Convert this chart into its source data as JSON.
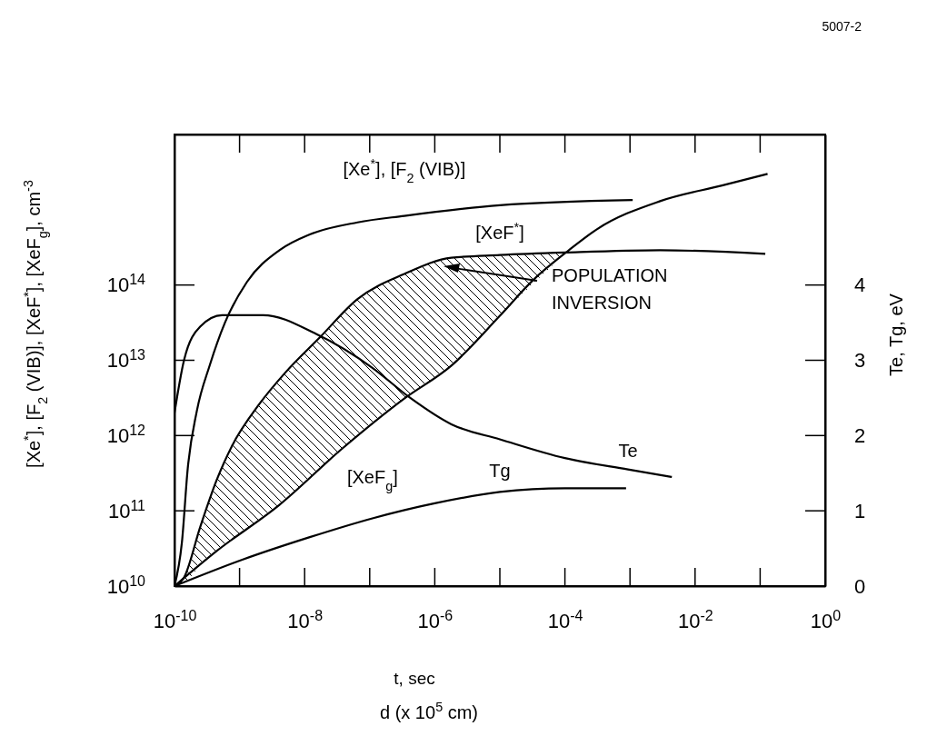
{
  "chart_data": {
    "type": "line",
    "xlabel": "t, sec",
    "ylabel": "[Xe$^{*}$], [F$_{2}$ (VIB)], [XeF$^{*}$], [XeF$_{g}$], cm$^{-3}$",
    "y2label": "Te, Tg, eV",
    "annotations": [
      "5007-2",
      "POPULATION INVERSION",
      "d (x 10$^{5}$ cm)"
    ],
    "log": "xy",
    "xlim": [
      1e-10,
      1
    ],
    "xticks": [
      {
        "value": 1e-10,
        "label": "10$^{-10}$"
      },
      {
        "value": 1e-08,
        "label": "10$^{-8}$"
      },
      {
        "value": 1e-06,
        "label": "10$^{-6}$"
      },
      {
        "value": 0.0001,
        "label": "10$^{-4}$"
      },
      {
        "value": 0.01,
        "label": "10$^{-2}$"
      },
      {
        "value": 1,
        "label": "10$^{0}$"
      }
    ],
    "ylim": [
      10000000000.0,
      1e+16
    ],
    "yticks": [
      {
        "value": 10000000000.0,
        "label": "10$^{10}$"
      },
      {
        "value": 100000000000.0,
        "label": "10$^{11}$"
      },
      {
        "value": 1000000000000.0,
        "label": "10$^{12}$"
      },
      {
        "value": 10000000000000.0,
        "label": "10$^{13}$"
      },
      {
        "value": 100000000000000.0,
        "label": "10$^{14}$"
      }
    ],
    "y2lim": [
      0,
      6
    ],
    "y2ticks": [
      0,
      1,
      2,
      3,
      4
    ],
    "series": [
      {
        "name": "[Xe$^{*}$], [F$_{2}$ (VIB)]",
        "color": "#000000",
        "x": [
          1e-10,
          1.3e-10,
          1.6e-10,
          2.2e-10,
          3.5e-10,
          6e-10,
          1.3e-09,
          4.1e-09,
          1.2e-08,
          6.5e-08,
          3.4e-07,
          1e-05,
          0.0011
        ],
        "values": [
          10000000000.0,
          38000000000.0,
          370000000000.0,
          2100000000000.0,
          8700000000000.0,
          32000000000000.0,
          110000000000000.0,
          290000000000000.0,
          470000000000000.0,
          680000000000000.0,
          830000000000000.0,
          1150000000000000.0,
          1350000000000000.0
        ]
      },
      {
        "name": "[XeF$^{*}$]",
        "color": "#000000",
        "x": [
          1e-10,
          1.4e-10,
          2.5e-10,
          4.4e-10,
          7.6e-10,
          2e-09,
          5e-09,
          1.7e-08,
          6.5e-08,
          3.4e-07,
          1.8e-06,
          1e-05,
          0.0001,
          0.0029,
          0.12
        ],
        "values": [
          10000000000.0,
          13000000000.0,
          62000000000.0,
          250000000000.0,
          720000000000.0,
          2600000000000.0,
          6800000000000.0,
          20000000000000.0,
          65000000000000.0,
          140000000000000.0,
          230000000000000.0,
          250000000000000.0,
          270000000000000.0,
          290000000000000.0,
          260000000000000.0
        ],
        "lower": [
          10000000000.0,
          11000000000.0,
          19000000000.0,
          29000000000.0,
          41000000000.0,
          77000000000.0,
          140000000000.0,
          360000000000.0,
          970000000000.0,
          3100000000000.0,
          8500000000000.0,
          39000000000000.0,
          260000000000000.0,
          null,
          null
        ],
        "upper": [
          10000000000.0,
          13000000000.0,
          62000000000.0,
          250000000000.0,
          720000000000.0,
          2600000000000.0,
          6800000000000.0,
          20000000000000.0,
          65000000000000.0,
          140000000000000.0,
          230000000000000.0,
          250000000000000.0,
          270000000000000.0,
          null,
          null
        ]
      },
      {
        "name": "Te",
        "color": "#000000",
        "axis": "y2",
        "x": [
          1e-10,
          1.4e-10,
          2.5e-10,
          5.4e-10,
          2.3e-09,
          1.5e-08,
          1.1e-07,
          4.2e-07,
          1.8e-06,
          1e-05,
          0.0001,
          0.00093,
          0.0044
        ],
        "values": [
          2.3,
          3.0,
          3.45,
          3.6,
          3.6,
          3.35,
          2.9,
          2.5,
          2.15,
          1.95,
          1.7,
          1.55,
          1.45
        ]
      },
      {
        "name": "[XeF$_{g}$]",
        "color": "#000000",
        "x": [
          1e-10,
          4.4e-10,
          4.1e-09,
          3.7e-08,
          3.4e-07,
          1.8e-06,
          1e-05,
          3.2e-05,
          0.000115,
          0.00031,
          0.0029,
          0.026,
          0.13
        ],
        "values": [
          10000000000.0,
          29000000000.0,
          120000000000.0,
          660000000000.0,
          3100000000000.0,
          8500000000000.0,
          39000000000000.0,
          115000000000000.0,
          290000000000000.0,
          550000000000000.0,
          1300000000000000.0,
          2100000000000000.0,
          3000000000000000.0
        ]
      },
      {
        "name": "Tg",
        "color": "#000000",
        "axis": "y2",
        "x": [
          1e-10,
          1.1e-09,
          1.2e-08,
          1.1e-07,
          1e-06,
          1e-05,
          0.0001,
          0.00087
        ],
        "values": [
          0,
          0.35,
          0.65,
          0.9,
          1.1,
          1.25,
          1.3,
          1.3
        ]
      }
    ]
  }
}
